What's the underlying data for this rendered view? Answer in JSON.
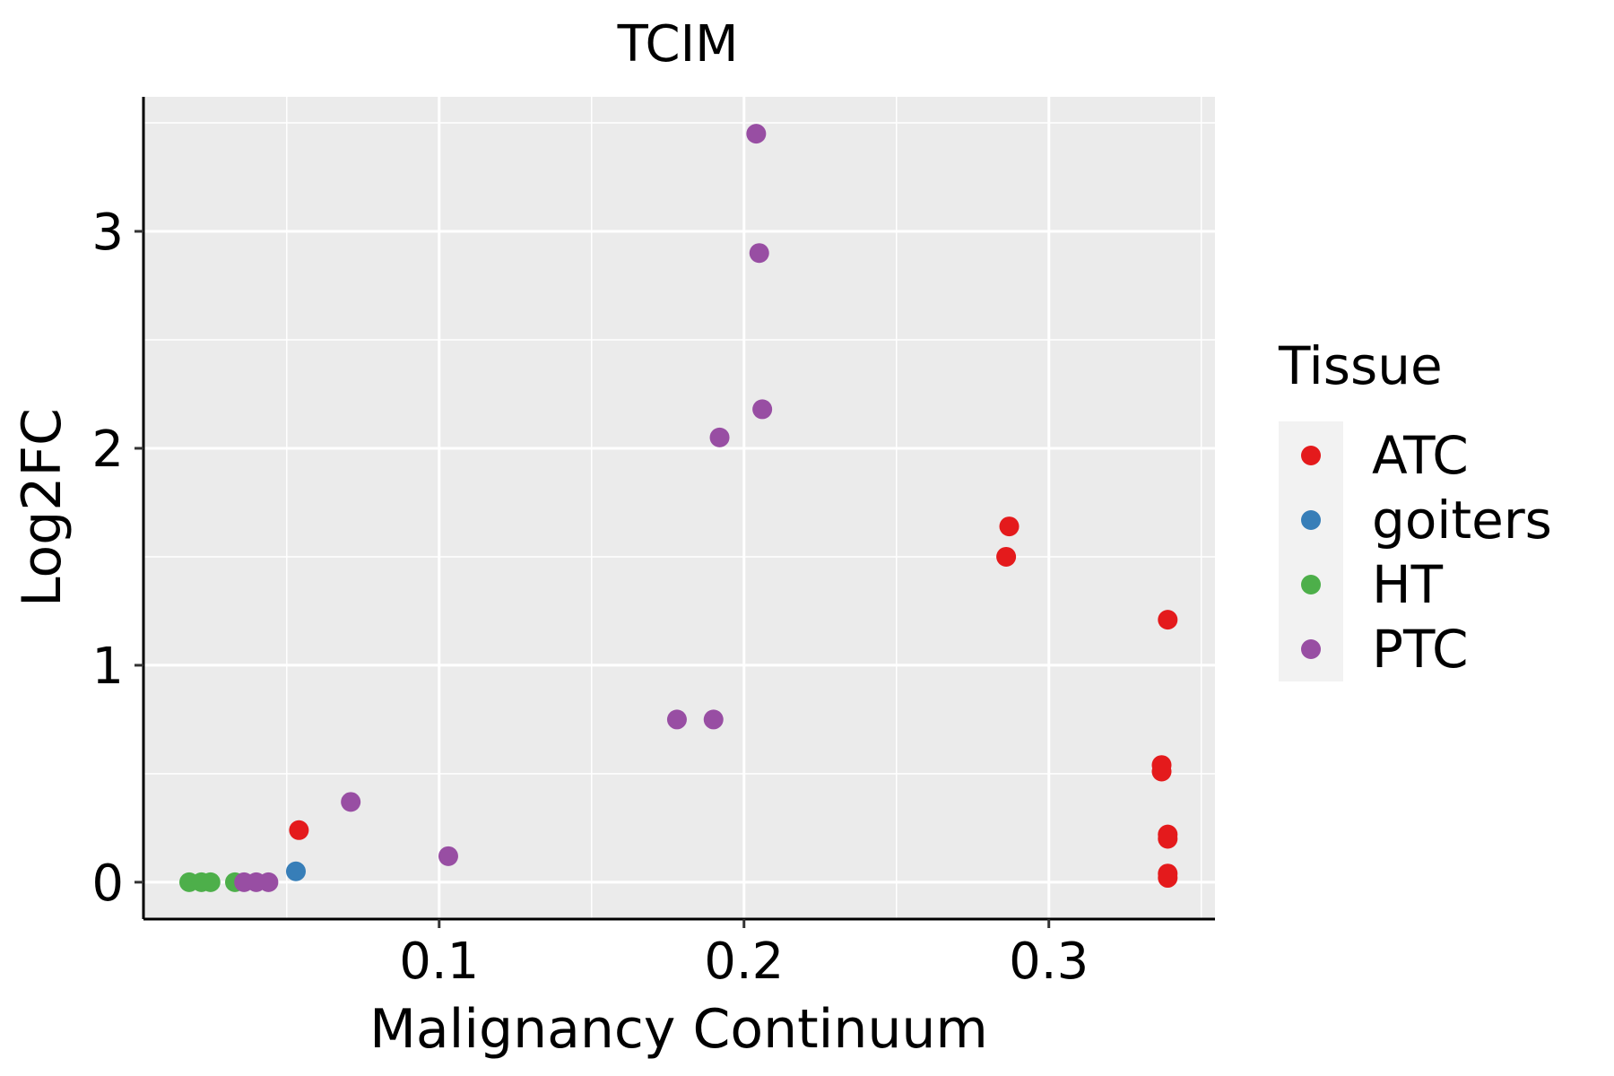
{
  "chart_data": {
    "type": "scatter",
    "title": "TCIM",
    "xlabel": "Malignancy Continuum",
    "ylabel": "Log2FC",
    "xlim": [
      0.003,
      0.3545
    ],
    "ylim": [
      -0.17,
      3.62
    ],
    "x_ticks": [
      0.1,
      0.2,
      0.3
    ],
    "x_tick_labels": [
      "0.1",
      "0.2",
      "0.3"
    ],
    "y_ticks": [
      0,
      1,
      2,
      3
    ],
    "y_tick_labels": [
      "0",
      "1",
      "2",
      "3"
    ],
    "grid": true,
    "legend": {
      "title": "Tissue",
      "position": "right"
    },
    "series": [
      {
        "name": "ATC",
        "color": "#E41A1C",
        "points": [
          [
            0.054,
            0.24
          ],
          [
            0.287,
            1.64
          ],
          [
            0.286,
            1.5
          ],
          [
            0.339,
            1.21
          ],
          [
            0.337,
            0.54
          ],
          [
            0.337,
            0.51
          ],
          [
            0.339,
            0.22
          ],
          [
            0.339,
            0.2
          ],
          [
            0.339,
            0.04
          ],
          [
            0.339,
            0.02
          ]
        ]
      },
      {
        "name": "goiters",
        "color": "#377EB8",
        "points": [
          [
            0.053,
            0.05
          ]
        ]
      },
      {
        "name": "HT",
        "color": "#4DAF4A",
        "points": [
          [
            0.018,
            0.0
          ],
          [
            0.022,
            0.0
          ],
          [
            0.025,
            0.0
          ],
          [
            0.033,
            0.0
          ]
        ]
      },
      {
        "name": "PTC",
        "color": "#984EA3",
        "points": [
          [
            0.204,
            3.45
          ],
          [
            0.205,
            2.9
          ],
          [
            0.206,
            2.18
          ],
          [
            0.192,
            2.05
          ],
          [
            0.178,
            0.75
          ],
          [
            0.19,
            0.75
          ],
          [
            0.071,
            0.37
          ],
          [
            0.103,
            0.12
          ],
          [
            0.036,
            0.0
          ],
          [
            0.04,
            0.0
          ],
          [
            0.044,
            0.0
          ]
        ]
      }
    ]
  }
}
